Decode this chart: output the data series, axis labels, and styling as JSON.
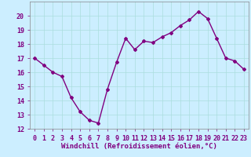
{
  "x": [
    0,
    1,
    2,
    3,
    4,
    5,
    6,
    7,
    8,
    9,
    10,
    11,
    12,
    13,
    14,
    15,
    16,
    17,
    18,
    19,
    20,
    21,
    22,
    23
  ],
  "y": [
    17.0,
    16.5,
    16.0,
    15.7,
    14.2,
    13.2,
    12.6,
    12.4,
    14.8,
    16.7,
    18.4,
    17.6,
    18.2,
    18.1,
    18.5,
    18.8,
    19.3,
    19.7,
    20.3,
    19.8,
    18.4,
    17.0,
    16.8,
    16.2
  ],
  "line_color": "#800080",
  "marker": "D",
  "marker_size": 2,
  "bg_color": "#cceeff",
  "grid_color": "#aadddd",
  "ylim": [
    12,
    21
  ],
  "yticks": [
    12,
    13,
    14,
    15,
    16,
    17,
    18,
    19,
    20
  ],
  "xlim": [
    -0.5,
    23.5
  ],
  "xlabel": "Windchill (Refroidissement éolien,°C)",
  "xlabel_fontsize": 6.5,
  "tick_fontsize": 6.0,
  "line_width": 1.0
}
